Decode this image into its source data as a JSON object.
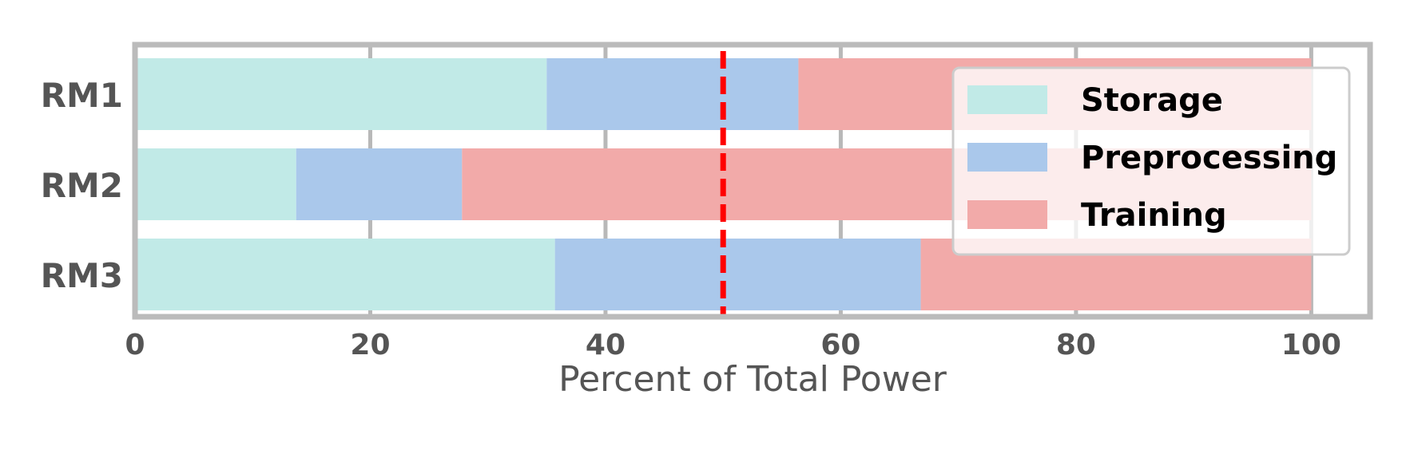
{
  "chart_data": {
    "type": "bar",
    "orientation": "horizontal",
    "stacked": true,
    "categories": [
      "RM1",
      "RM2",
      "RM3"
    ],
    "series": [
      {
        "name": "Storage",
        "values": [
          35,
          13.7,
          35.7
        ],
        "color": "#c1eae7"
      },
      {
        "name": "Preprocessing",
        "values": [
          21.4,
          14.1,
          31.1
        ],
        "color": "#aac8eb"
      },
      {
        "name": "Training",
        "values": [
          43.6,
          72.2,
          33.2
        ],
        "color": "#f2aaa9"
      }
    ],
    "xlabel": "Percent of Total Power",
    "ylabel": "",
    "xlim": [
      0,
      105
    ],
    "xticks": [
      0,
      20,
      40,
      60,
      80,
      100
    ],
    "reference_line": {
      "x": 50,
      "color": "#ff0000",
      "style": "dashed"
    },
    "grid": true,
    "legend_position": "top-right",
    "frame_color": "#bbbbbb"
  }
}
